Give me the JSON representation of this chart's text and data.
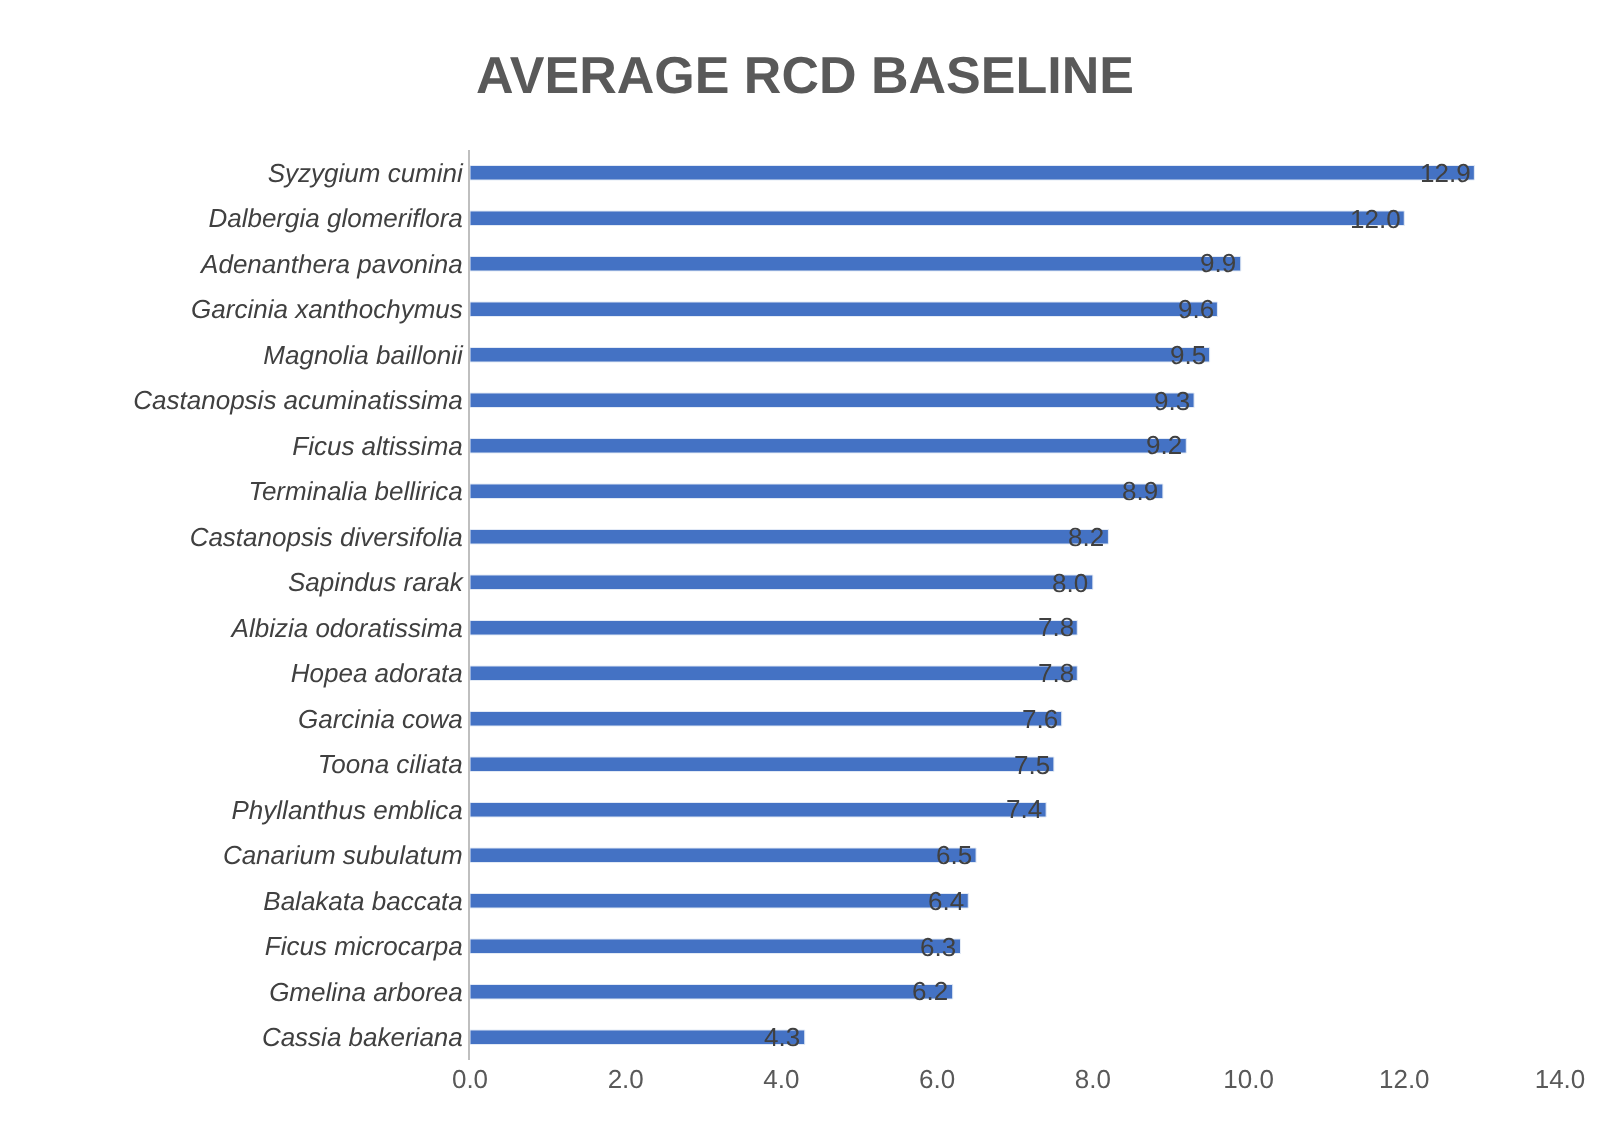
{
  "chart_data": {
    "type": "bar",
    "orientation": "horizontal",
    "title": "AVERAGE RCD BASELINE",
    "categories": [
      "Syzygium cumini",
      "Dalbergia glomeriflora",
      "Adenanthera pavonina",
      "Garcinia xanthochymus",
      "Magnolia baillonii",
      "Castanopsis acuminatissima",
      "Ficus altissima",
      "Terminalia bellirica",
      "Castanopsis diversifolia",
      "Sapindus rarak",
      "Albizia odoratissima",
      "Hopea adorata",
      "Garcinia cowa",
      "Toona ciliata",
      "Phyllanthus emblica",
      "Canarium subulatum",
      "Balakata baccata",
      "Ficus microcarpa",
      "Gmelina arborea",
      "Cassia bakeriana"
    ],
    "values": [
      12.9,
      12.0,
      9.9,
      9.6,
      9.5,
      9.3,
      9.2,
      8.9,
      8.2,
      8.0,
      7.8,
      7.8,
      7.6,
      7.5,
      7.4,
      6.5,
      6.4,
      6.3,
      6.2,
      4.3
    ],
    "color": "#4472c4",
    "value_labels": [
      "12.9",
      "12.0",
      "9.9",
      "9.6",
      "9.5",
      "9.3",
      "9.2",
      "8.9",
      "8.2",
      "8.0",
      "7.8",
      "7.8",
      "7.6",
      "7.5",
      "7.4",
      "6.5",
      "6.4",
      "6.3",
      "6.2",
      "4.3"
    ],
    "xlim": [
      0,
      14
    ],
    "xticks": [
      {
        "value": 0,
        "label": "0.0"
      },
      {
        "value": 2,
        "label": "2.0"
      },
      {
        "value": 4,
        "label": "4.0"
      },
      {
        "value": 6,
        "label": "6.0"
      },
      {
        "value": 8,
        "label": "8.0"
      },
      {
        "value": 10,
        "label": "10.0"
      },
      {
        "value": 12,
        "label": "12.0"
      },
      {
        "value": 14,
        "label": "14.0"
      }
    ]
  }
}
